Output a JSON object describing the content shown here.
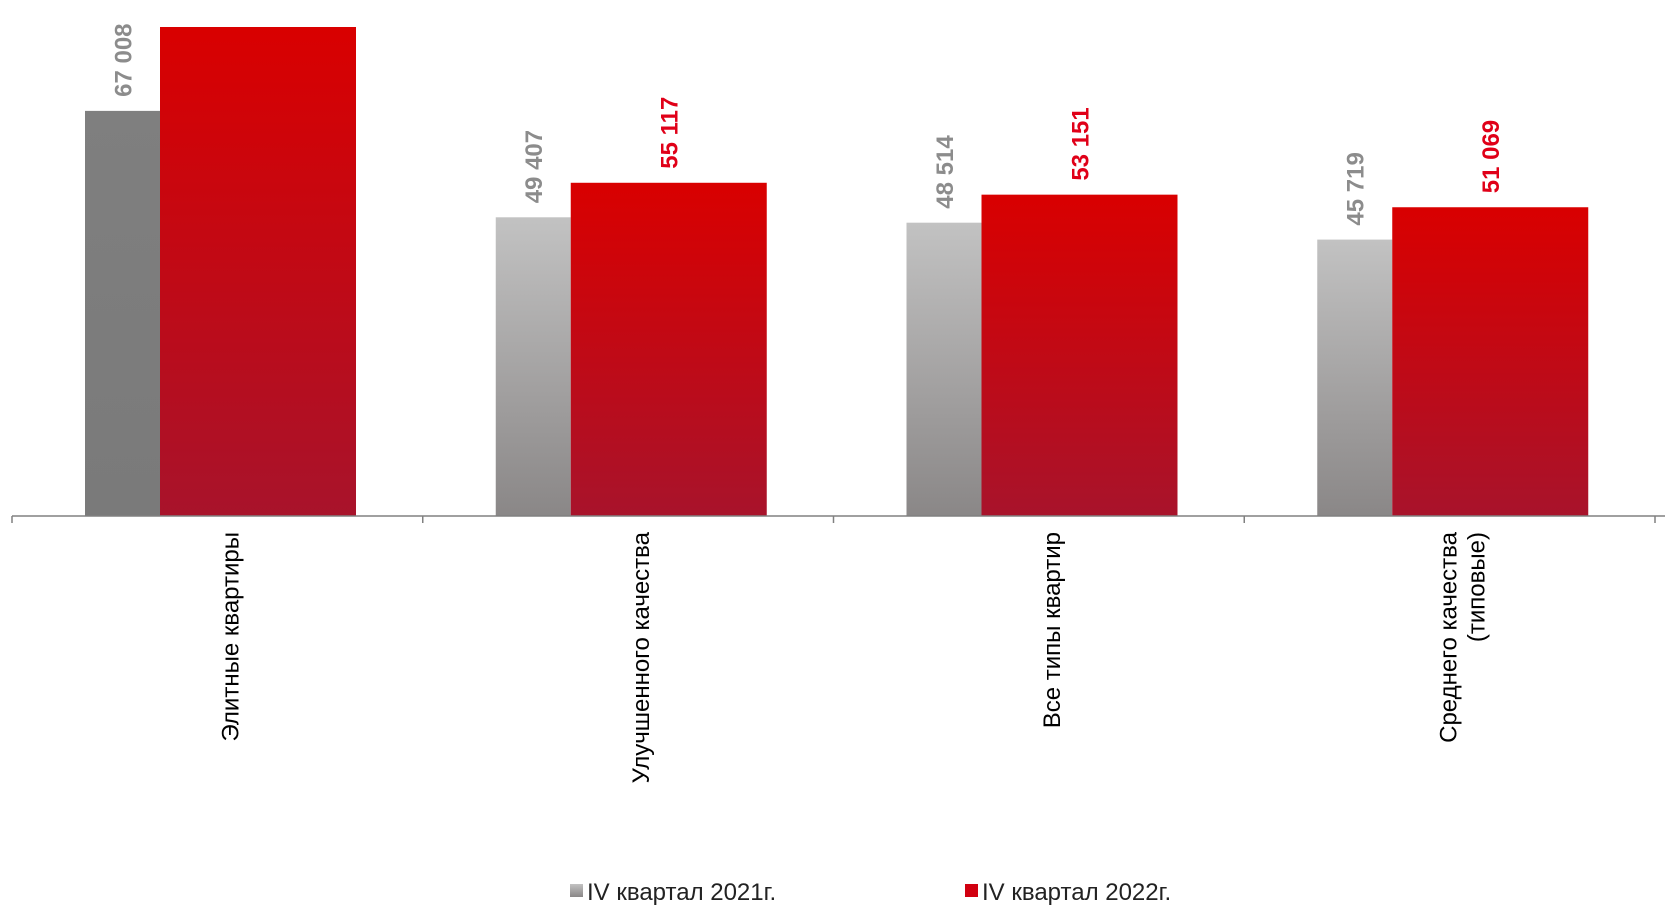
{
  "chart_data": {
    "type": "bar",
    "title": "",
    "xlabel": "",
    "ylabel": "",
    "ylim": [
      0,
      70000
    ],
    "grid": false,
    "legend_position": "bottom",
    "categories": [
      [
        "Элитные квартиры"
      ],
      [
        "Улучшенного качества"
      ],
      [
        "Все типы квартир"
      ],
      [
        "Среднего качества",
        "(типовые)"
      ]
    ],
    "series": [
      {
        "name": "IV квартал 2021г.",
        "values": [
          67008,
          49407,
          48514,
          45719
        ],
        "labels": [
          "67 008",
          "49 407",
          "48 514",
          "45 719"
        ],
        "color": "#9a9a9a",
        "label_color": "#8c8c8c"
      },
      {
        "name": "IV квартал 2022г.",
        "values": [
          null,
          55117,
          53151,
          51069
        ],
        "labels": [
          "",
          "55 117",
          "53 151",
          "51 069"
        ],
        "color": "#d10010",
        "label_color": "#e00018"
      }
    ],
    "special_marks": {
      "first_category_series2_note": "bar drawn without printed value",
      "first_category_series2_value": 80883
    }
  }
}
